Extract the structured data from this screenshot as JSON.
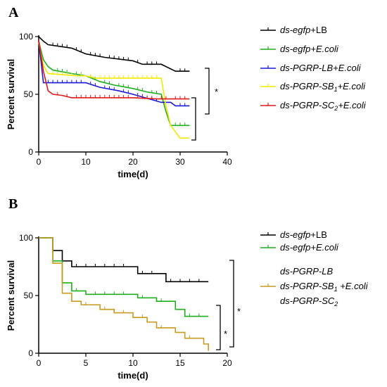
{
  "chart_data": [
    {
      "panel": "A",
      "type": "line",
      "ylabel": "Percent survival",
      "xlabel": "time(d)",
      "xlim": [
        0,
        40
      ],
      "ylim": [
        0,
        100
      ],
      "xticks": [
        "0",
        "10",
        "20",
        "30",
        "40"
      ],
      "yticks": [
        "0",
        "50",
        "100"
      ],
      "significance": [
        "*"
      ],
      "legend": [
        {
          "parts": [
            [
              "ds-egfp",
              true
            ],
            [
              "+LB",
              false
            ]
          ]
        },
        {
          "parts": [
            [
              "ds-egfp+E.coli",
              true
            ]
          ]
        },
        {
          "parts": [
            [
              "ds-PGRP-LB+E.coli",
              true
            ]
          ]
        },
        {
          "parts": [
            [
              "ds-PGRP-SB",
              true
            ],
            [
              "1",
              true,
              "sub"
            ],
            [
              "+E.coli",
              true
            ]
          ]
        },
        {
          "parts": [
            [
              "ds-PGRP-SC",
              true
            ],
            [
              "2",
              true,
              "sub"
            ],
            [
              "+E.coli",
              true
            ]
          ]
        }
      ],
      "series": [
        {
          "color": "#000000",
          "points": [
            [
              0,
              100
            ],
            [
              1,
              96
            ],
            [
              2,
              93
            ],
            [
              7,
              90
            ],
            [
              10,
              85
            ],
            [
              14,
              82
            ],
            [
              20,
              79
            ],
            [
              22,
              76
            ],
            [
              26,
              76
            ],
            [
              29,
              70
            ],
            [
              32,
              70
            ]
          ],
          "censor": [
            3,
            4,
            5,
            6,
            8,
            9,
            11,
            12,
            13,
            15,
            16,
            17,
            18,
            19,
            21,
            23,
            24,
            25,
            30,
            31
          ]
        },
        {
          "color": "#1fae1f",
          "points": [
            [
              0,
              96
            ],
            [
              1,
              80
            ],
            [
              2,
              74
            ],
            [
              3,
              71
            ],
            [
              7,
              68
            ],
            [
              10,
              66
            ],
            [
              13,
              61
            ],
            [
              16,
              58
            ],
            [
              20,
              55
            ],
            [
              23,
              52
            ],
            [
              26,
              50
            ],
            [
              27,
              35
            ],
            [
              28,
              23
            ],
            [
              32,
              23
            ]
          ],
          "censor": [
            4,
            5,
            6,
            8,
            9,
            11,
            12,
            14,
            15,
            17,
            18,
            19,
            21,
            22,
            24,
            25,
            29,
            30,
            31
          ]
        },
        {
          "color": "#1a1ad6",
          "points": [
            [
              0,
              96
            ],
            [
              1,
              60
            ],
            [
              10,
              60
            ],
            [
              13,
              56
            ],
            [
              17,
              53
            ],
            [
              20,
              50
            ],
            [
              26,
              43
            ],
            [
              28,
              43
            ],
            [
              29,
              40
            ],
            [
              32,
              40
            ]
          ],
          "censor": [
            2,
            3,
            4,
            5,
            6,
            7,
            8,
            9,
            11,
            12,
            14,
            15,
            16,
            18,
            19,
            21,
            22,
            23,
            24,
            25,
            30,
            31
          ]
        },
        {
          "color": "#f2ea00",
          "points": [
            [
              0,
              95
            ],
            [
              1,
              75
            ],
            [
              2,
              68
            ],
            [
              8,
              66
            ],
            [
              10,
              66
            ],
            [
              12,
              64
            ],
            [
              26,
              64
            ],
            [
              27,
              40
            ],
            [
              28,
              23
            ],
            [
              30,
              12
            ],
            [
              32,
              12
            ]
          ],
          "censor": [
            3,
            4,
            5,
            6,
            7,
            9,
            11,
            13,
            14,
            15,
            16,
            17,
            18,
            19,
            20,
            21,
            22,
            23,
            24,
            25
          ]
        },
        {
          "color": "#e01818",
          "points": [
            [
              0,
              97
            ],
            [
              1,
              70
            ],
            [
              2,
              53
            ],
            [
              3,
              50
            ],
            [
              5,
              49
            ],
            [
              7,
              47
            ],
            [
              20,
              47
            ],
            [
              25,
              46
            ],
            [
              28,
              46
            ],
            [
              32,
              46
            ]
          ],
          "censor": [
            4,
            6,
            8,
            9,
            10,
            11,
            12,
            13,
            14,
            15,
            16,
            17,
            18,
            19,
            21,
            22,
            23,
            24,
            26,
            27,
            29,
            30,
            31
          ]
        }
      ]
    },
    {
      "panel": "B",
      "type": "line",
      "ylabel": "Percent survival",
      "xlabel": "time(d)",
      "xlim": [
        0,
        20
      ],
      "ylim": [
        0,
        100
      ],
      "xticks": [
        "0",
        "5",
        "10",
        "15",
        "20"
      ],
      "yticks": [
        "0",
        "50",
        "100"
      ],
      "significance": [
        "*",
        "*"
      ],
      "legend": [
        {
          "parts": [
            [
              "ds-egfp",
              true
            ],
            [
              "+LB",
              false
            ]
          ]
        },
        {
          "parts": [
            [
              "ds-egfp+E.coli",
              true
            ]
          ]
        },
        {
          "lines": [
            {
              "parts": [
                [
                  "ds-PGRP-LB",
                  true
                ]
              ]
            },
            {
              "parts": [
                [
                  "ds-PGRP-SB",
                  true
                ],
                [
                  "1",
                  true,
                  "sub"
                ],
                [
                  " +E.coli",
                  true
                ]
              ]
            },
            {
              "parts": [
                [
                  "ds-PGRP-SC",
                  true
                ],
                [
                  "2",
                  true,
                  "sub"
                ]
              ]
            }
          ]
        }
      ],
      "series": [
        {
          "color": "#000000",
          "points": [
            [
              0,
              100
            ],
            [
              1,
              100
            ],
            [
              1.5,
              89
            ],
            [
              2,
              89
            ],
            [
              2.5,
              80
            ],
            [
              3,
              80
            ],
            [
              3.5,
              75
            ],
            [
              10,
              75
            ],
            [
              10.5,
              69
            ],
            [
              13,
              69
            ],
            [
              13.5,
              62
            ],
            [
              18,
              62
            ]
          ],
          "censor": [
            4,
            5,
            6,
            7,
            8,
            9,
            11,
            12,
            14,
            15,
            16,
            17
          ]
        },
        {
          "color": "#1fae1f",
          "points": [
            [
              0,
              100
            ],
            [
              1,
              100
            ],
            [
              1.5,
              80
            ],
            [
              2,
              80
            ],
            [
              2.5,
              61
            ],
            [
              3,
              61
            ],
            [
              3.5,
              54
            ],
            [
              4.5,
              54
            ],
            [
              5,
              51
            ],
            [
              10,
              51
            ],
            [
              10.5,
              48
            ],
            [
              12,
              48
            ],
            [
              12.5,
              45
            ],
            [
              14,
              45
            ],
            [
              14.5,
              38
            ],
            [
              15,
              38
            ],
            [
              15.5,
              32
            ],
            [
              18,
              32
            ]
          ],
          "censor": [
            4,
            6,
            7,
            8,
            9,
            11,
            13,
            16,
            17
          ]
        },
        {
          "color": "#c89a20",
          "points": [
            [
              0,
              100
            ],
            [
              1,
              100
            ],
            [
              1.5,
              78
            ],
            [
              2,
              78
            ],
            [
              2.5,
              52
            ],
            [
              3,
              52
            ],
            [
              3.5,
              45
            ],
            [
              4,
              45
            ],
            [
              4.5,
              42
            ],
            [
              6,
              42
            ],
            [
              6.5,
              38
            ],
            [
              7.5,
              38
            ],
            [
              8,
              35
            ],
            [
              9.5,
              35
            ],
            [
              10,
              31
            ],
            [
              11,
              31
            ],
            [
              11.5,
              27
            ],
            [
              12,
              27
            ],
            [
              12.5,
              22
            ],
            [
              14,
              22
            ],
            [
              14.5,
              18
            ],
            [
              15,
              18
            ],
            [
              15.5,
              13
            ],
            [
              17,
              13
            ],
            [
              17.5,
              8
            ],
            [
              18,
              2
            ]
          ],
          "censor": [
            5,
            7,
            9,
            11,
            13,
            16
          ]
        }
      ]
    }
  ]
}
